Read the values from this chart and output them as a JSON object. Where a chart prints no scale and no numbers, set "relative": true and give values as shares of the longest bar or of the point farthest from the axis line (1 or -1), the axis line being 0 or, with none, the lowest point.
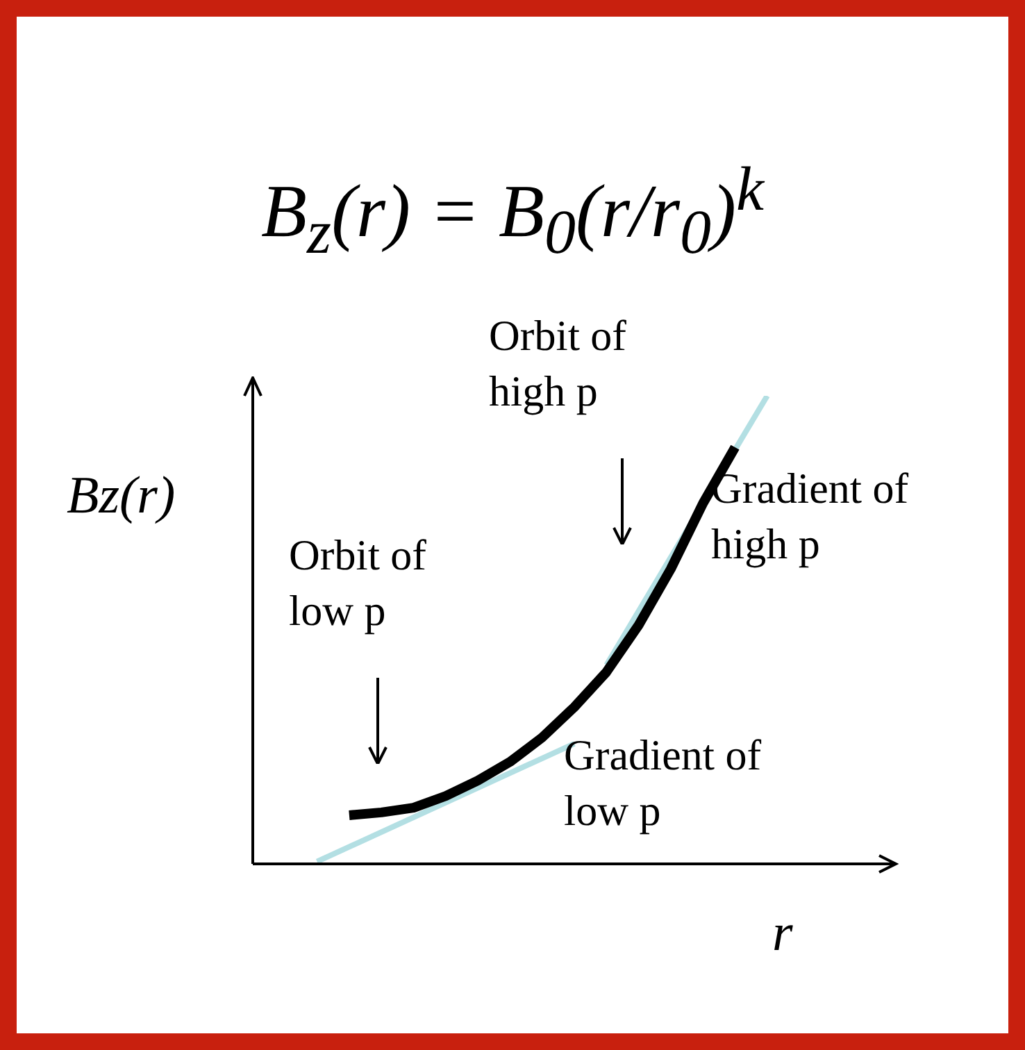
{
  "chart_data": {
    "type": "line",
    "relative": true,
    "title": "B$_{z}$(r) = B$_{0}$(r/r$_{0}$)$^{k}$",
    "xlabel": "r",
    "ylabel": "Bz(r)",
    "tick_labels": false,
    "legend": false,
    "marker": "none",
    "line_style": "solid",
    "categories": [
      null,
      null,
      null,
      null,
      null,
      null,
      null,
      null,
      null,
      null,
      null,
      null,
      null,
      null,
      null,
      null,
      null,
      null,
      null,
      null,
      null
    ],
    "series": [
      {
        "color": "#000000",
        "values": [
          null,
          null,
          null,
          0.104,
          0.11,
          0.12,
          0.145,
          0.178,
          0.218,
          0.27,
          0.335,
          0.41,
          0.51,
          0.63,
          0.77,
          0.89,
          null,
          null,
          null,
          null,
          null
        ]
      },
      {
        "color": "#b3dfe3",
        "values": [
          null,
          null,
          null,
          null,
          null,
          null,
          null,
          null,
          null,
          null,
          null,
          0.425,
          null,
          null,
          null,
          null,
          1,
          null,
          null,
          null,
          null
        ]
      },
      {
        "color": "#b3dfe3",
        "values": [
          null,
          null,
          0.005,
          null,
          null,
          null,
          null,
          null,
          null,
          null,
          0.257,
          null,
          null,
          null,
          null,
          null,
          null,
          null,
          null,
          null,
          null
        ]
      }
    ],
    "annotations": [
      "Orbit of high p",
      "Gradient of high p",
      "Orbit of low p",
      "Gradient of low p"
    ]
  }
}
